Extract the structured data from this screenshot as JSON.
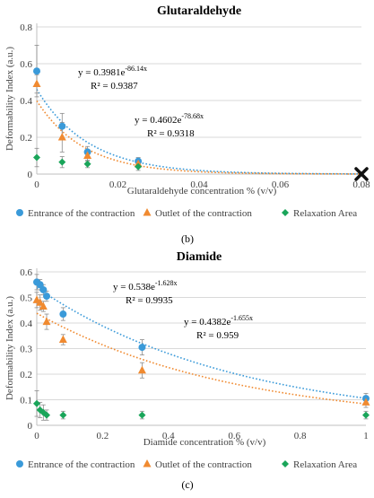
{
  "chart_data": [
    {
      "type": "scatter",
      "title": "Glutaraldehyde",
      "panel_label": "",
      "xlabel": "Glutaraldehyde concentration % (v/v)",
      "ylabel": "Deformability Index (a.u.)",
      "xlim": [
        0,
        0.08
      ],
      "ylim": [
        0,
        0.8
      ],
      "xticks": [
        "0",
        "0.02",
        "0.04",
        "0.06",
        "0.08"
      ],
      "yticks": [
        "0",
        "0.2",
        "0.4",
        "0.6",
        "0.8"
      ],
      "marker_x": 0.08,
      "marker_y": 0.0,
      "series": [
        {
          "name": "Entrance of the contraction",
          "color": "#3a9ad9",
          "marker": "circle",
          "x": [
            0,
            0.00625,
            0.0125,
            0.025
          ],
          "y": [
            0.56,
            0.26,
            0.12,
            0.07
          ],
          "err": [
            0.14,
            0.07,
            0.03,
            0.02
          ]
        },
        {
          "name": "Outlet of the contraction",
          "color": "#f08a30",
          "marker": "triangle",
          "x": [
            0,
            0.00625,
            0.0125,
            0.025
          ],
          "y": [
            0.49,
            0.2,
            0.1,
            0.055
          ],
          "err": [
            0.05,
            0.08,
            0.03,
            0.02
          ]
        },
        {
          "name": "Relaxation Area",
          "color": "#1aa55a",
          "marker": "diamond",
          "x": [
            0,
            0.00625,
            0.0125,
            0.025
          ],
          "y": [
            0.09,
            0.065,
            0.055,
            0.04
          ],
          "err": [
            0.05,
            0.03,
            0.02,
            0.02
          ]
        }
      ],
      "trendlines": [
        {
          "series": 0,
          "a": 0.4602,
          "b": 78.68,
          "equation": "y = 0.4602e",
          "exponent": "-78.68x",
          "r2": "R² = 0.9318"
        },
        {
          "series": 1,
          "a": 0.3981,
          "b": 86.14,
          "equation": "y = 0.3981e",
          "exponent": "-86.14x",
          "r2": "R² = 0.9387"
        }
      ]
    },
    {
      "type": "scatter",
      "title": "Diamide",
      "panel_label": "(b)",
      "xlabel": "Diamide concentration % (v/v)",
      "ylabel": "Deformability Index (a.u.)",
      "xlim": [
        0,
        1
      ],
      "ylim": [
        0,
        0.6
      ],
      "xticks": [
        "0",
        "0.2",
        "0.4",
        "0.6",
        "0.8",
        "1"
      ],
      "yticks": [
        "0",
        "0.1",
        "0.2",
        "0.3",
        "0.4",
        "0.5",
        "0.6"
      ],
      "series": [
        {
          "name": "Entrance of the contraction",
          "color": "#3a9ad9",
          "marker": "circle",
          "x": [
            0,
            0.01,
            0.02,
            0.03,
            0.08,
            0.32,
            1
          ],
          "y": [
            0.56,
            0.55,
            0.53,
            0.505,
            0.435,
            0.305,
            0.105
          ],
          "err": [
            0.03,
            0.02,
            0.02,
            0.02,
            0.025,
            0.03,
            0.02
          ]
        },
        {
          "name": "Outlet of the contraction",
          "color": "#f08a30",
          "marker": "triangle",
          "x": [
            0,
            0.01,
            0.02,
            0.03,
            0.08,
            0.32,
            1
          ],
          "y": [
            0.49,
            0.48,
            0.465,
            0.405,
            0.335,
            0.215,
            0.09
          ],
          "err": [
            0.03,
            0.03,
            0.02,
            0.03,
            0.02,
            0.03,
            0.02
          ]
        },
        {
          "name": "Relaxation Area",
          "color": "#1aa55a",
          "marker": "diamond",
          "x": [
            0,
            0.01,
            0.02,
            0.03,
            0.08,
            0.32,
            1
          ],
          "y": [
            0.085,
            0.06,
            0.05,
            0.04,
            0.04,
            0.04,
            0.04
          ],
          "err": [
            0.05,
            0.03,
            0.03,
            0.02,
            0.015,
            0.015,
            0.015
          ]
        }
      ],
      "trendlines": [
        {
          "series": 0,
          "a": 0.538,
          "b": 1.628,
          "equation": "y = 0.538e",
          "exponent": "-1.628x",
          "r2": "R² = 0.9935"
        },
        {
          "series": 1,
          "a": 0.4382,
          "b": 1.655,
          "equation": "y = 0.4382e",
          "exponent": "-1.655x",
          "r2": "R² = 0.959"
        }
      ]
    }
  ],
  "bottom_label": "(c)"
}
